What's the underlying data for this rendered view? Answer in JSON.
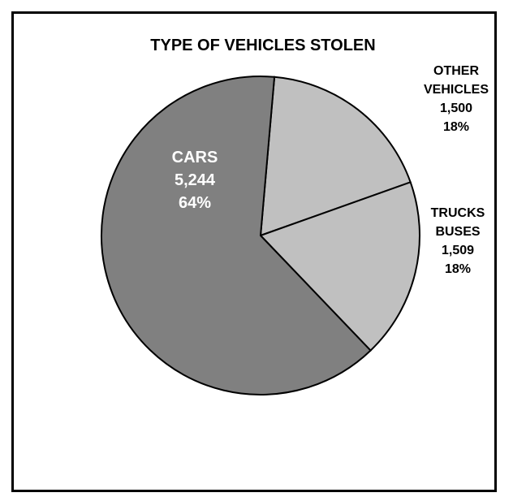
{
  "chart_data": {
    "type": "pie",
    "title": "TYPE OF VEHICLES STOLEN",
    "slices": [
      {
        "name_lines": [
          "OTHER",
          "VEHICLES"
        ],
        "value": 1500,
        "value_label": "1,500",
        "percent_label": "18%",
        "color": "#c0c0c0"
      },
      {
        "name_lines": [
          "TRUCKS",
          "BUSES"
        ],
        "value": 1509,
        "value_label": "1,509",
        "percent_label": "18%",
        "color": "#c0c0c0"
      },
      {
        "name_lines": [
          "CARS"
        ],
        "value": 5244,
        "value_label": "5,244",
        "percent_label": "64%",
        "color": "#808080"
      }
    ],
    "start_angle_deg": -85,
    "label_color_inside": "#ffffff",
    "label_color_outside": "#000000",
    "edge_color": "#000000",
    "frame_color": "#000000"
  }
}
